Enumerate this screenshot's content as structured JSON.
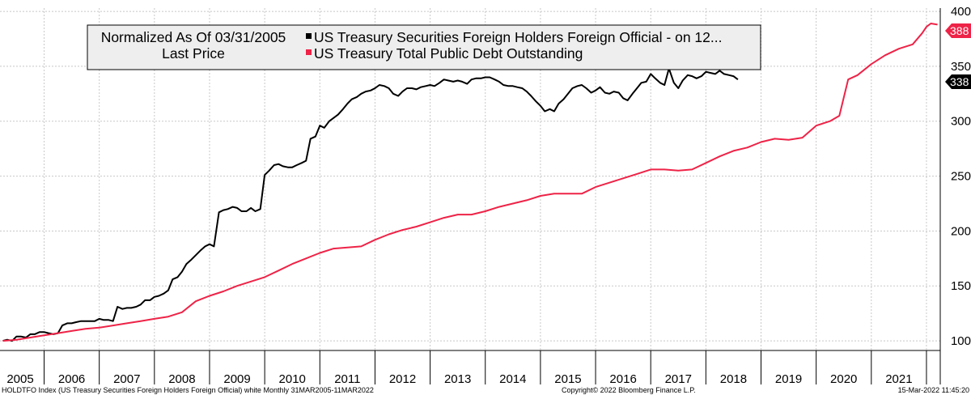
{
  "chart_data": {
    "type": "line",
    "legend": {
      "placement": "top-left",
      "header": [
        "Normalized As Of 03/31/2005",
        "Last Price"
      ],
      "entries": [
        "US Treasury Securities Foreign Holders Foreign Official -  on 12...",
        "US Treasury Total Public Debt Outstanding"
      ]
    },
    "x_labels": [
      "2005",
      "2006",
      "2007",
      "2008",
      "2009",
      "2010",
      "2011",
      "2012",
      "2013",
      "2014",
      "2015",
      "2016",
      "2017",
      "2018",
      "2019",
      "2020",
      "2021"
    ],
    "xlim": [
      2005.2,
      2022.25
    ],
    "ylim": [
      75,
      403
    ],
    "y_ticks": [
      100,
      150,
      200,
      250,
      300,
      350,
      400
    ],
    "grid": true,
    "axis_position": "right",
    "series": [
      {
        "name": "US Treasury Securities Foreign Holders Foreign Official -  on 12...",
        "color": "#000000",
        "last_value": "338",
        "points": [
          [
            2005.25,
            100
          ],
          [
            2005.33,
            101
          ],
          [
            2005.42,
            100
          ],
          [
            2005.5,
            104
          ],
          [
            2005.58,
            104
          ],
          [
            2005.67,
            103
          ],
          [
            2005.75,
            106
          ],
          [
            2005.83,
            106
          ],
          [
            2005.92,
            108
          ],
          [
            2006.0,
            108
          ],
          [
            2006.08,
            107
          ],
          [
            2006.17,
            106
          ],
          [
            2006.25,
            107
          ],
          [
            2006.33,
            114
          ],
          [
            2006.42,
            116
          ],
          [
            2006.5,
            116
          ],
          [
            2006.58,
            117
          ],
          [
            2006.67,
            118
          ],
          [
            2006.75,
            118
          ],
          [
            2006.83,
            118
          ],
          [
            2006.92,
            118
          ],
          [
            2007.0,
            120
          ],
          [
            2007.08,
            119
          ],
          [
            2007.17,
            119
          ],
          [
            2007.25,
            118
          ],
          [
            2007.33,
            131
          ],
          [
            2007.42,
            129
          ],
          [
            2007.5,
            130
          ],
          [
            2007.58,
            130
          ],
          [
            2007.67,
            131
          ],
          [
            2007.75,
            133
          ],
          [
            2007.83,
            137
          ],
          [
            2007.92,
            137
          ],
          [
            2008.0,
            140
          ],
          [
            2008.08,
            141
          ],
          [
            2008.17,
            143
          ],
          [
            2008.25,
            146
          ],
          [
            2008.33,
            156
          ],
          [
            2008.42,
            158
          ],
          [
            2008.5,
            163
          ],
          [
            2008.58,
            170
          ],
          [
            2008.67,
            174
          ],
          [
            2008.75,
            178
          ],
          [
            2008.83,
            182
          ],
          [
            2008.92,
            186
          ],
          [
            2009.0,
            188
          ],
          [
            2009.08,
            186
          ],
          [
            2009.17,
            217
          ],
          [
            2009.25,
            219
          ],
          [
            2009.33,
            220
          ],
          [
            2009.42,
            222
          ],
          [
            2009.5,
            221
          ],
          [
            2009.58,
            218
          ],
          [
            2009.67,
            218
          ],
          [
            2009.75,
            221
          ],
          [
            2009.83,
            218
          ],
          [
            2009.92,
            220
          ],
          [
            2010.0,
            251
          ],
          [
            2010.08,
            255
          ],
          [
            2010.17,
            260
          ],
          [
            2010.25,
            261
          ],
          [
            2010.33,
            259
          ],
          [
            2010.42,
            258
          ],
          [
            2010.5,
            258
          ],
          [
            2010.58,
            260
          ],
          [
            2010.67,
            262
          ],
          [
            2010.75,
            264
          ],
          [
            2010.83,
            284
          ],
          [
            2010.92,
            286
          ],
          [
            2011.0,
            296
          ],
          [
            2011.08,
            294
          ],
          [
            2011.17,
            300
          ],
          [
            2011.25,
            303
          ],
          [
            2011.33,
            306
          ],
          [
            2011.42,
            311
          ],
          [
            2011.5,
            316
          ],
          [
            2011.58,
            320
          ],
          [
            2011.67,
            322
          ],
          [
            2011.75,
            325
          ],
          [
            2011.83,
            327
          ],
          [
            2011.92,
            328
          ],
          [
            2012.0,
            330
          ],
          [
            2012.08,
            333
          ],
          [
            2012.17,
            332
          ],
          [
            2012.25,
            330
          ],
          [
            2012.33,
            325
          ],
          [
            2012.42,
            323
          ],
          [
            2012.5,
            327
          ],
          [
            2012.58,
            330
          ],
          [
            2012.67,
            330
          ],
          [
            2012.75,
            329
          ],
          [
            2012.83,
            331
          ],
          [
            2012.92,
            332
          ],
          [
            2013.0,
            333
          ],
          [
            2013.08,
            332
          ],
          [
            2013.17,
            335
          ],
          [
            2013.25,
            338
          ],
          [
            2013.33,
            337
          ],
          [
            2013.42,
            336
          ],
          [
            2013.5,
            337
          ],
          [
            2013.58,
            336
          ],
          [
            2013.67,
            334
          ],
          [
            2013.75,
            338
          ],
          [
            2013.83,
            339
          ],
          [
            2013.92,
            339
          ],
          [
            2014.0,
            340
          ],
          [
            2014.08,
            340
          ],
          [
            2014.17,
            338
          ],
          [
            2014.25,
            336
          ],
          [
            2014.33,
            333
          ],
          [
            2014.42,
            332
          ],
          [
            2014.5,
            332
          ],
          [
            2014.58,
            331
          ],
          [
            2014.67,
            330
          ],
          [
            2014.75,
            327
          ],
          [
            2014.83,
            323
          ],
          [
            2014.92,
            318
          ],
          [
            2015.0,
            314
          ],
          [
            2015.08,
            309
          ],
          [
            2015.17,
            311
          ],
          [
            2015.25,
            309
          ],
          [
            2015.33,
            316
          ],
          [
            2015.42,
            320
          ],
          [
            2015.5,
            325
          ],
          [
            2015.58,
            330
          ],
          [
            2015.67,
            332
          ],
          [
            2015.75,
            333
          ],
          [
            2015.83,
            330
          ],
          [
            2015.92,
            326
          ],
          [
            2016.0,
            328
          ],
          [
            2016.08,
            331
          ],
          [
            2016.17,
            326
          ],
          [
            2016.25,
            325
          ],
          [
            2016.33,
            327
          ],
          [
            2016.42,
            326
          ],
          [
            2016.5,
            321
          ],
          [
            2016.58,
            319
          ],
          [
            2016.67,
            325
          ],
          [
            2016.75,
            330
          ],
          [
            2016.83,
            335
          ],
          [
            2016.92,
            336
          ],
          [
            2017.0,
            343
          ],
          [
            2017.08,
            339
          ],
          [
            2017.17,
            335
          ],
          [
            2017.25,
            333
          ],
          [
            2017.33,
            348
          ],
          [
            2017.42,
            335
          ],
          [
            2017.5,
            330
          ],
          [
            2017.58,
            337
          ],
          [
            2017.67,
            342
          ],
          [
            2017.75,
            341
          ],
          [
            2017.83,
            339
          ],
          [
            2017.92,
            341
          ],
          [
            2018.0,
            345
          ],
          [
            2018.08,
            344
          ],
          [
            2018.17,
            343
          ],
          [
            2018.25,
            346
          ],
          [
            2018.33,
            343
          ],
          [
            2018.42,
            342
          ],
          [
            2018.5,
            341
          ],
          [
            2018.58,
            338
          ]
        ]
      },
      {
        "name": "US Treasury Total Public Debt Outstanding",
        "color": "#ee2347",
        "last_value": "388",
        "points": [
          [
            2005.25,
            100
          ],
          [
            2005.5,
            101
          ],
          [
            2005.75,
            103
          ],
          [
            2006.0,
            105
          ],
          [
            2006.25,
            107
          ],
          [
            2006.5,
            109
          ],
          [
            2006.75,
            111
          ],
          [
            2007.0,
            112
          ],
          [
            2007.25,
            114
          ],
          [
            2007.5,
            116
          ],
          [
            2007.75,
            118
          ],
          [
            2008.0,
            120
          ],
          [
            2008.25,
            122
          ],
          [
            2008.5,
            126
          ],
          [
            2008.75,
            136
          ],
          [
            2009.0,
            141
          ],
          [
            2009.25,
            145
          ],
          [
            2009.5,
            150
          ],
          [
            2009.75,
            154
          ],
          [
            2010.0,
            158
          ],
          [
            2010.25,
            164
          ],
          [
            2010.5,
            170
          ],
          [
            2010.75,
            175
          ],
          [
            2011.0,
            180
          ],
          [
            2011.25,
            184
          ],
          [
            2011.5,
            185
          ],
          [
            2011.75,
            186
          ],
          [
            2012.0,
            192
          ],
          [
            2012.25,
            197
          ],
          [
            2012.5,
            201
          ],
          [
            2012.75,
            204
          ],
          [
            2013.0,
            208
          ],
          [
            2013.25,
            212
          ],
          [
            2013.5,
            215
          ],
          [
            2013.75,
            215
          ],
          [
            2014.0,
            218
          ],
          [
            2014.25,
            222
          ],
          [
            2014.5,
            225
          ],
          [
            2014.75,
            228
          ],
          [
            2015.0,
            232
          ],
          [
            2015.25,
            234
          ],
          [
            2015.5,
            234
          ],
          [
            2015.75,
            234
          ],
          [
            2016.0,
            240
          ],
          [
            2016.25,
            244
          ],
          [
            2016.5,
            248
          ],
          [
            2016.75,
            252
          ],
          [
            2017.0,
            256
          ],
          [
            2017.25,
            256
          ],
          [
            2017.5,
            255
          ],
          [
            2017.75,
            256
          ],
          [
            2018.0,
            262
          ],
          [
            2018.25,
            268
          ],
          [
            2018.5,
            273
          ],
          [
            2018.75,
            276
          ],
          [
            2019.0,
            281
          ],
          [
            2019.25,
            284
          ],
          [
            2019.5,
            283
          ],
          [
            2019.75,
            285
          ],
          [
            2020.0,
            296
          ],
          [
            2020.25,
            300
          ],
          [
            2020.42,
            305
          ],
          [
            2020.58,
            338
          ],
          [
            2020.75,
            342
          ],
          [
            2021.0,
            352
          ],
          [
            2021.25,
            360
          ],
          [
            2021.5,
            366
          ],
          [
            2021.75,
            370
          ],
          [
            2021.92,
            380
          ],
          [
            2022.0,
            386
          ],
          [
            2022.08,
            389
          ],
          [
            2022.2,
            388
          ]
        ]
      }
    ]
  },
  "footer": {
    "left": "HOLDTFO Index (US Treasury Securities Foreign Holders Foreign Official) white  Monthly 31MAR2005-11MAR2022",
    "center": "Copyright© 2022 Bloomberg Finance L.P.",
    "right": "15-Mar-2022 11:45:20"
  }
}
